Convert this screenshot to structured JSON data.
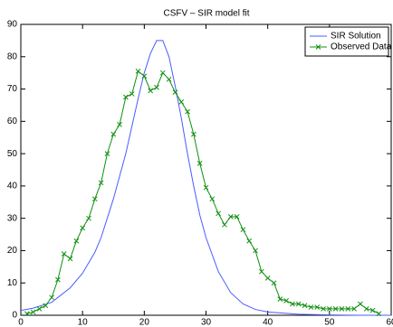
{
  "chart_data": {
    "type": "line",
    "title": "CSFV – SIR model fit",
    "xlim": [
      0,
      60
    ],
    "xticks": [
      0,
      10,
      20,
      30,
      40,
      50,
      60
    ],
    "ylim": [
      0,
      90
    ],
    "yticks": [
      0,
      10,
      20,
      30,
      40,
      50,
      60,
      70,
      80,
      90
    ],
    "legend": "top-right",
    "series": [
      {
        "name": "SIR Solution",
        "color": "#4a5cff",
        "marker": "none",
        "x": [
          0,
          2,
          5,
          8,
          10,
          12,
          13,
          15,
          17,
          19,
          20,
          21,
          22,
          23,
          24,
          25,
          26,
          27,
          28,
          29,
          30,
          32,
          34,
          36,
          38,
          40,
          45,
          50,
          55,
          60
        ],
        "values": [
          1.5,
          2.2,
          4,
          8.5,
          13,
          19.5,
          24,
          36,
          50,
          67,
          75,
          81,
          85,
          85,
          80,
          71,
          61,
          50,
          40,
          31,
          24,
          13.5,
          7,
          3.5,
          1.8,
          1,
          0.3,
          0.1,
          0,
          0
        ]
      },
      {
        "name": "Observed Data",
        "color": "#109010",
        "marker": "x",
        "x": [
          1,
          2,
          3,
          4,
          5,
          6,
          7,
          8,
          9,
          10,
          11,
          12,
          13,
          14,
          15,
          16,
          17,
          18,
          19,
          20,
          21,
          22,
          23,
          24,
          25,
          26,
          27,
          28,
          29,
          30,
          31,
          32,
          33,
          34,
          35,
          36,
          37,
          38,
          39,
          40,
          41,
          42,
          43,
          44,
          45,
          46,
          47,
          48,
          49,
          50,
          51,
          52,
          53,
          54,
          55,
          56,
          57,
          58
        ],
        "values": [
          0.5,
          1,
          2,
          3,
          5.5,
          11,
          19,
          17.5,
          23,
          27,
          30,
          36,
          41,
          50,
          56,
          59,
          67.5,
          68.5,
          75.5,
          74,
          69.5,
          70.5,
          75,
          73,
          69,
          66,
          63,
          56,
          47,
          39.5,
          36,
          31.5,
          28,
          30.5,
          30.5,
          26.5,
          23,
          20,
          13.5,
          11.5,
          10,
          5,
          4.5,
          3.5,
          3.5,
          3,
          2.5,
          2.5,
          2,
          2,
          2,
          2,
          2,
          2,
          3.5,
          2,
          1.5,
          0.5
        ]
      }
    ]
  }
}
